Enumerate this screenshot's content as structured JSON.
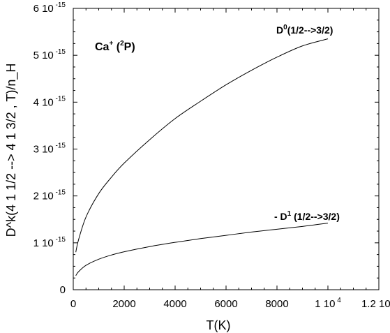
{
  "chart_data": {
    "type": "line",
    "title": "",
    "xlabel": "T(K)",
    "ylabel": "D^k(4 1  1/2 --> 4 1  3/2 , T)/n_H",
    "xlim": [
      0,
      12000
    ],
    "ylim": [
      0,
      6e-15
    ],
    "grid": false,
    "x_ticks": [
      {
        "value": 0,
        "label": "0",
        "exp": ""
      },
      {
        "value": 2000,
        "label": "2000",
        "exp": ""
      },
      {
        "value": 4000,
        "label": "4000",
        "exp": ""
      },
      {
        "value": 6000,
        "label": "6000",
        "exp": ""
      },
      {
        "value": 8000,
        "label": "8000",
        "exp": ""
      },
      {
        "value": 10000,
        "label": "1 10",
        "exp": "4"
      },
      {
        "value": 12000,
        "label": "1.2 10",
        "exp": "4"
      }
    ],
    "y_ticks": [
      {
        "value": 0,
        "label": "0",
        "exp": ""
      },
      {
        "value": 1e-15,
        "label": "1 10",
        "exp": "-15"
      },
      {
        "value": 2e-15,
        "label": "2 10",
        "exp": "-15"
      },
      {
        "value": 3e-15,
        "label": "3 10",
        "exp": "-15"
      },
      {
        "value": 4e-15,
        "label": "4 10",
        "exp": "-15"
      },
      {
        "value": 5e-15,
        "label": "5 10",
        "exp": "-15"
      },
      {
        "value": 6e-15,
        "label": "6 10",
        "exp": "-15"
      }
    ],
    "annotations": {
      "species_main": "Ca",
      "species_charge": "+",
      "species_open": " (",
      "species_sup": "2",
      "species_close": "P)",
      "d0_main": "D",
      "d0_sup": "0",
      "d0_rest": "(1/2-->3/2)",
      "d1_prefix": "- D",
      "d1_sup": "1",
      "d1_rest": " (1/2-->3/2)"
    },
    "series": [
      {
        "x": [
          100,
          200,
          500,
          1000,
          1500,
          2000,
          3000,
          4000,
          5000,
          6000,
          7000,
          8000,
          9000,
          10000
        ],
        "y": [
          8e-16,
          1.05e-15,
          1.55e-15,
          2.05e-15,
          2.4e-15,
          2.7e-15,
          3.2e-15,
          3.65e-15,
          4.02e-15,
          4.37e-15,
          4.68e-15,
          4.96e-15,
          5.2e-15,
          5.35e-15
        ]
      },
      {
        "x": [
          100,
          200,
          500,
          1000,
          1500,
          2000,
          3000,
          4000,
          5000,
          6000,
          7000,
          8000,
          9000,
          10000
        ],
        "y": [
          3e-16,
          3.8e-16,
          5.2e-16,
          6.5e-16,
          7.4e-16,
          8.1e-16,
          9.2e-16,
          1.01e-15,
          1.09e-15,
          1.16e-15,
          1.23e-15,
          1.29e-15,
          1.35e-15,
          1.42e-15
        ]
      }
    ]
  }
}
